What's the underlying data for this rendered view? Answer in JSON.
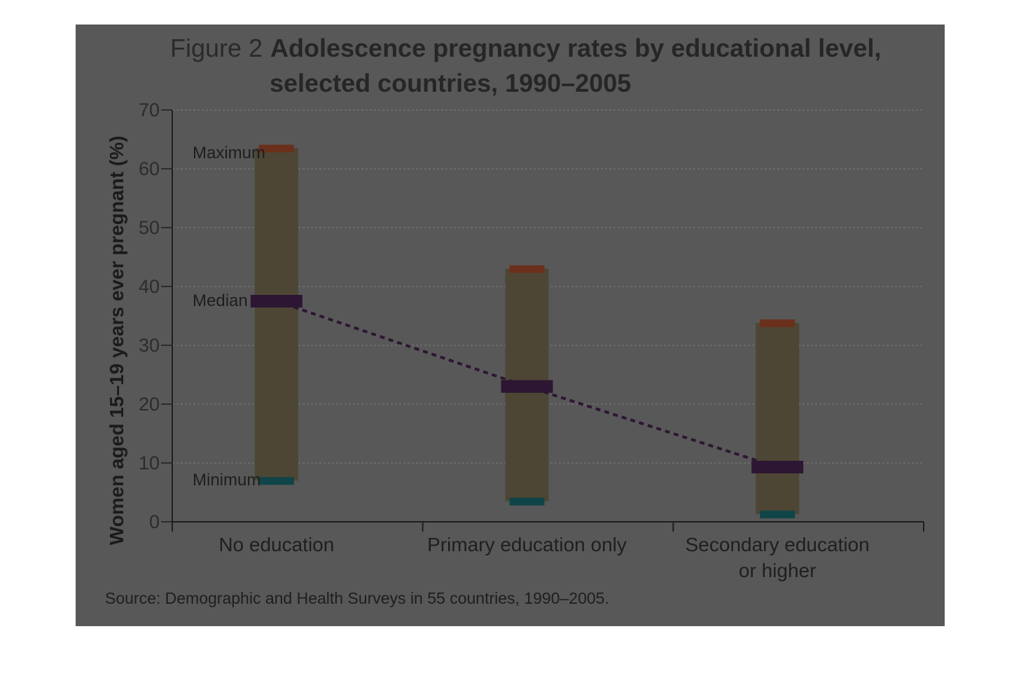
{
  "figure": {
    "label": "Figure 2",
    "title_line1": "Adolescence pregnancy rates by educational level,",
    "title_line2": "selected countries, 1990–2005",
    "source": "Source: Demographic and Health Surveys in 55 countries, 1990–2005."
  },
  "annotations": {
    "max_label": "Maximum",
    "median_label": "Median",
    "min_label": "Minimum"
  },
  "colors": {
    "panel_bg": "#585858",
    "range_bar": "#4d4634",
    "max_marker": "#6a301c",
    "median_marker": "#2d1633",
    "min_marker": "#0f4548",
    "trend_line": "#2d1633",
    "axis": "#1f1f1f",
    "grid": "#707070"
  },
  "chart_data": {
    "type": "range-bar",
    "title": "Adolescence pregnancy rates by educational level, selected countries, 1990–2005",
    "ylabel": "Women aged 15–19 years ever pregnant (%)",
    "xlabel": "",
    "ylim": [
      0,
      70
    ],
    "yticks": [
      0,
      10,
      20,
      30,
      40,
      50,
      60,
      70
    ],
    "grid": true,
    "categories": [
      {
        "lines": [
          "No education"
        ],
        "min": 7,
        "median": 37.5,
        "max": 63.5
      },
      {
        "lines": [
          "Primary education only"
        ],
        "min": 3.5,
        "median": 23,
        "max": 43
      },
      {
        "lines": [
          "Secondary education",
          "or higher"
        ],
        "min": 1.3,
        "median": 9.3,
        "max": 33.8
      }
    ]
  }
}
